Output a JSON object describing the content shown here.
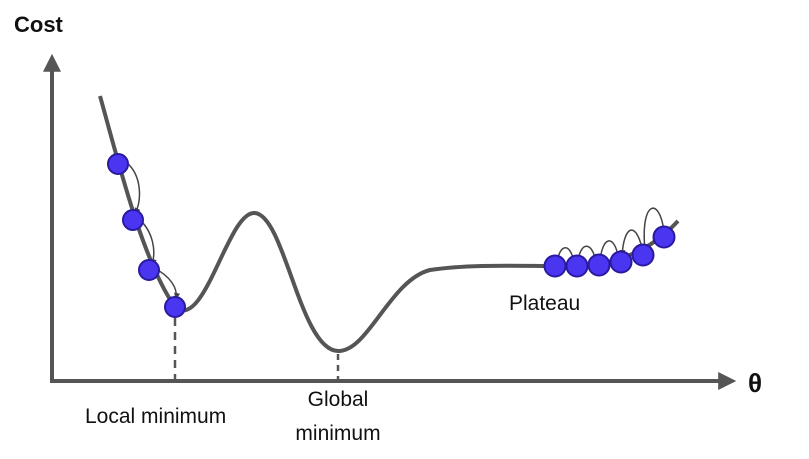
{
  "y_axis_label": "Cost",
  "x_axis_label": "θ",
  "annotations": {
    "local_minimum": "Local minimum",
    "global_minimum_line1": "Global",
    "global_minimum_line2": "minimum",
    "plateau": "Plateau"
  },
  "colors": {
    "curve": "#555555",
    "axis": "#555555",
    "ball_fill": "#4a36f0",
    "ball_stroke": "#2a1aa0",
    "arrow": "#444444"
  }
}
